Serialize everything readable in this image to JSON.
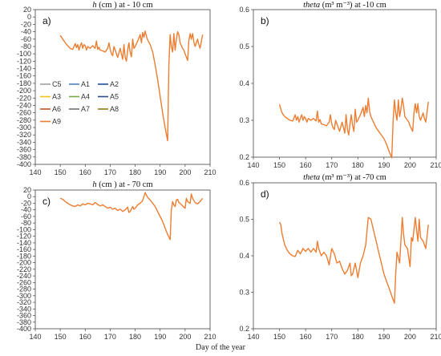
{
  "x_axis_label": "Day of the year",
  "chart_data": [
    {
      "type": "line",
      "panel_label": "a)",
      "title": {
        "var": "h",
        "unit": "(cm )",
        "loc": "at - 10 cm"
      },
      "xlim": [
        140,
        210
      ],
      "ylim": [
        -400,
        20
      ],
      "xticks": [
        140,
        150,
        160,
        170,
        180,
        190,
        200,
        210
      ],
      "yticks": [
        20,
        0,
        -20,
        -40,
        -60,
        -80,
        -100,
        -120,
        -140,
        -160,
        -180,
        -200,
        -220,
        -240,
        -260,
        -280,
        -300,
        -320,
        -340,
        -360,
        -380,
        -400
      ],
      "legend": {
        "position": "left",
        "entries": [
          {
            "name": "C5",
            "color": "#a0a0a0"
          },
          {
            "name": "A1",
            "color": "#4f81bd"
          },
          {
            "name": "A2",
            "color": "#1f4e9d"
          },
          {
            "name": "A3",
            "color": "#f2c21b"
          },
          {
            "name": "A4",
            "color": "#77a84a"
          },
          {
            "name": "A5",
            "color": "#2a4a8a"
          },
          {
            "name": "A6",
            "color": "#c0562d"
          },
          {
            "name": "A7",
            "color": "#6f6f6f"
          },
          {
            "name": "A8",
            "color": "#8a7a20"
          },
          {
            "name": "A9",
            "color": "#ed7d31"
          }
        ]
      },
      "series": [
        {
          "color": "#ed7d31",
          "x": [
            150,
            150.5,
            151,
            152,
            153,
            154,
            155,
            155.5,
            156,
            156.5,
            157,
            157.5,
            158,
            158.5,
            159,
            159.5,
            160,
            160.5,
            161,
            162,
            163,
            164,
            164.5,
            165,
            165.5,
            166,
            167,
            168,
            169,
            169.5,
            170,
            170.5,
            171,
            171.5,
            172,
            172.5,
            173,
            174,
            174.5,
            175,
            175.5,
            176,
            176.5,
            177,
            177.5,
            178,
            178.5,
            179,
            179.5,
            180,
            181,
            182,
            182.5,
            183,
            183.5,
            184,
            184.5,
            185,
            186,
            187,
            188,
            189,
            190,
            191,
            192,
            193,
            193.5,
            194,
            194.5,
            195,
            195.5,
            196,
            196.5,
            197,
            197.5,
            198,
            199,
            199.5,
            200,
            201,
            201.5,
            202,
            202.5,
            203,
            203.5,
            204,
            205,
            205.5,
            206,
            207
          ],
          "y": [
            -50,
            -55,
            -60,
            -70,
            -78,
            -85,
            -88,
            -80,
            -72,
            -83,
            -75,
            -90,
            -78,
            -70,
            -85,
            -75,
            -78,
            -90,
            -80,
            -85,
            -78,
            -85,
            -65,
            -88,
            -82,
            -90,
            -92,
            -95,
            -85,
            -70,
            -88,
            -100,
            -105,
            -80,
            -90,
            -100,
            -110,
            -85,
            -100,
            -115,
            -75,
            -110,
            -120,
            -90,
            -70,
            -95,
            -108,
            -60,
            -85,
            -80,
            -65,
            -48,
            -70,
            -42,
            -55,
            -38,
            -52,
            -62,
            -75,
            -95,
            -130,
            -170,
            -215,
            -260,
            -300,
            -336,
            -130,
            -48,
            -80,
            -95,
            -45,
            -90,
            -60,
            -40,
            -48,
            -70,
            -85,
            -90,
            -100,
            -118,
            -65,
            -45,
            -60,
            -45,
            -68,
            -80,
            -60,
            -75,
            -85,
            -48
          ]
        }
      ]
    },
    {
      "type": "line",
      "panel_label": "b)",
      "title": {
        "var": "theta",
        "unit": "(m³ m⁻³)",
        "loc": "at -10 cm"
      },
      "xlim": [
        140,
        210
      ],
      "ylim": [
        0.2,
        0.6
      ],
      "xticks": [
        140,
        150,
        160,
        170,
        180,
        190,
        200,
        210
      ],
      "yticks": [
        0.2,
        0.3,
        0.4,
        0.5,
        0.6
      ],
      "series": [
        {
          "color": "#ed7d31",
          "x": [
            150,
            150.5,
            151,
            152,
            153,
            154,
            155,
            155.5,
            156,
            156.5,
            157,
            157.5,
            158,
            158.5,
            159,
            159.5,
            160,
            160.5,
            161,
            162,
            163,
            164,
            164.5,
            165,
            165.5,
            166,
            167,
            168,
            169,
            169.5,
            170,
            170.5,
            171,
            171.5,
            172,
            172.5,
            173,
            174,
            174.5,
            175,
            175.5,
            176,
            176.5,
            177,
            177.5,
            178,
            178.5,
            179,
            179.5,
            180,
            181,
            182,
            182.5,
            183,
            183.5,
            184,
            184.5,
            185,
            186,
            187,
            188,
            189,
            190,
            191,
            192,
            193,
            193.5,
            194,
            194.5,
            195,
            195.5,
            196,
            196.5,
            197,
            197.5,
            198,
            199,
            199.5,
            200,
            201,
            201.5,
            202,
            202.5,
            203,
            203.5,
            204,
            205,
            205.5,
            206,
            207
          ],
          "y": [
            0.343,
            0.33,
            0.32,
            0.31,
            0.305,
            0.3,
            0.298,
            0.305,
            0.315,
            0.3,
            0.31,
            0.295,
            0.305,
            0.315,
            0.3,
            0.31,
            0.305,
            0.295,
            0.305,
            0.3,
            0.305,
            0.298,
            0.325,
            0.295,
            0.302,
            0.29,
            0.288,
            0.285,
            0.295,
            0.315,
            0.29,
            0.28,
            0.275,
            0.3,
            0.29,
            0.28,
            0.27,
            0.295,
            0.28,
            0.265,
            0.315,
            0.275,
            0.26,
            0.29,
            0.315,
            0.285,
            0.27,
            0.33,
            0.295,
            0.3,
            0.315,
            0.335,
            0.31,
            0.34,
            0.32,
            0.36,
            0.325,
            0.31,
            0.295,
            0.28,
            0.27,
            0.26,
            0.25,
            0.235,
            0.215,
            0.198,
            0.3,
            0.355,
            0.32,
            0.3,
            0.355,
            0.31,
            0.33,
            0.36,
            0.34,
            0.31,
            0.3,
            0.295,
            0.285,
            0.27,
            0.32,
            0.345,
            0.32,
            0.345,
            0.31,
            0.3,
            0.32,
            0.305,
            0.295,
            0.35
          ]
        }
      ]
    },
    {
      "type": "line",
      "panel_label": "c)",
      "title": {
        "var": "h",
        "unit": "(cm )",
        "loc": "at - 70 cm"
      },
      "xlim": [
        140,
        210
      ],
      "ylim": [
        -400,
        20
      ],
      "xticks": [
        140,
        150,
        160,
        170,
        180,
        190,
        200,
        210
      ],
      "yticks": [
        20,
        0,
        -20,
        -40,
        -60,
        -80,
        -100,
        -120,
        -140,
        -160,
        -180,
        -200,
        -220,
        -240,
        -260,
        -280,
        -300,
        -320,
        -340,
        -360,
        -380,
        -400
      ],
      "series": [
        {
          "color": "#ed7d31",
          "x": [
            150,
            151,
            152,
            153,
            154,
            155,
            156,
            157,
            158,
            159,
            160,
            161,
            162,
            163,
            164,
            164.5,
            165,
            166,
            167,
            168,
            169,
            170,
            171,
            172,
            173,
            174,
            175,
            176,
            177,
            177.5,
            178,
            179,
            179.5,
            180,
            181,
            182,
            183,
            184,
            185,
            186,
            187,
            188,
            189,
            190,
            191,
            192,
            193,
            194,
            194.5,
            195,
            195.5,
            196,
            196.5,
            197,
            197.5,
            198,
            199,
            200,
            200.5,
            201,
            202,
            202.5,
            203,
            203.5,
            204,
            205,
            206,
            207
          ],
          "y": [
            -5,
            -8,
            -15,
            -20,
            -25,
            -28,
            -30,
            -25,
            -28,
            -22,
            -25,
            -20,
            -22,
            -25,
            -18,
            -20,
            -24,
            -28,
            -25,
            -30,
            -35,
            -32,
            -38,
            -35,
            -42,
            -38,
            -45,
            -40,
            -32,
            -48,
            -45,
            -30,
            -38,
            -35,
            -25,
            -20,
            -12,
            12,
            -2,
            -10,
            -20,
            -30,
            -45,
            -60,
            -75,
            -95,
            -115,
            -130,
            -40,
            -15,
            -25,
            -30,
            -10,
            -8,
            -18,
            -20,
            -28,
            -35,
            -5,
            -15,
            -20,
            8,
            -5,
            -12,
            -18,
            -22,
            -15,
            -5
          ]
        }
      ]
    },
    {
      "type": "line",
      "panel_label": "d)",
      "title": {
        "var": "theta",
        "unit": "(m³ m⁻³)",
        "loc": "at -70 cm"
      },
      "xlim": [
        140,
        210
      ],
      "ylim": [
        0.2,
        0.6
      ],
      "xticks": [
        140,
        150,
        160,
        170,
        180,
        190,
        200,
        210
      ],
      "yticks": [
        0.2,
        0.3,
        0.4,
        0.5,
        0.6
      ],
      "series": [
        {
          "color": "#ed7d31",
          "x": [
            150,
            150.5,
            151,
            152,
            153,
            154,
            155,
            156,
            157,
            158,
            159,
            160,
            161,
            162,
            163,
            164,
            164.5,
            165,
            166,
            167,
            168,
            169,
            170,
            171,
            172,
            173,
            174,
            175,
            176,
            177,
            177.5,
            178,
            179,
            179.5,
            180,
            181,
            182,
            183,
            184,
            185,
            186,
            187,
            188,
            189,
            190,
            191,
            192,
            193,
            194,
            194.5,
            195,
            195.5,
            196,
            196.5,
            197,
            197.5,
            198,
            199,
            200,
            200.5,
            201,
            202,
            202.5,
            203,
            203.5,
            204,
            205,
            206,
            207
          ],
          "y": [
            0.492,
            0.485,
            0.46,
            0.43,
            0.415,
            0.405,
            0.4,
            0.398,
            0.415,
            0.405,
            0.42,
            0.412,
            0.42,
            0.41,
            0.42,
            0.41,
            0.44,
            0.42,
            0.4,
            0.41,
            0.4,
            0.375,
            0.42,
            0.405,
            0.38,
            0.385,
            0.365,
            0.35,
            0.36,
            0.38,
            0.345,
            0.35,
            0.38,
            0.36,
            0.34,
            0.38,
            0.4,
            0.43,
            0.505,
            0.5,
            0.47,
            0.44,
            0.41,
            0.38,
            0.35,
            0.33,
            0.31,
            0.29,
            0.27,
            0.35,
            0.41,
            0.395,
            0.38,
            0.44,
            0.505,
            0.46,
            0.43,
            0.42,
            0.37,
            0.45,
            0.44,
            0.505,
            0.47,
            0.44,
            0.5,
            0.45,
            0.44,
            0.42,
            0.485
          ]
        }
      ]
    }
  ]
}
